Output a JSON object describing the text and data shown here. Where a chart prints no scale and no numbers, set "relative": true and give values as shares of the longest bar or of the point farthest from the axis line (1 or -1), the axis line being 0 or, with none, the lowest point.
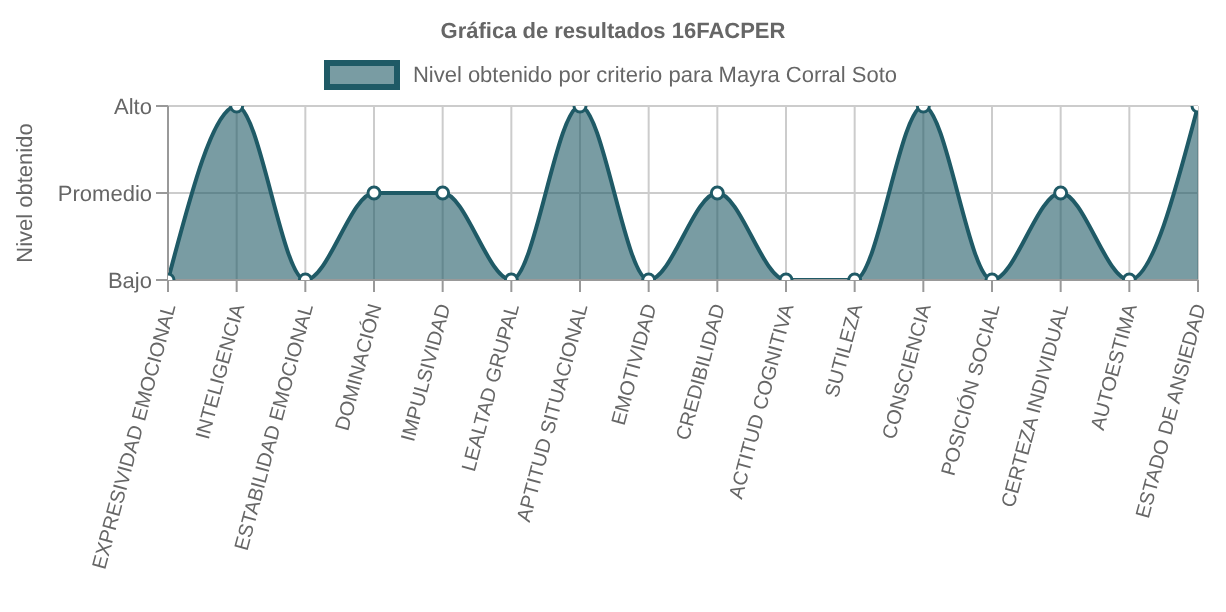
{
  "chart_data": {
    "type": "area",
    "title": "Gráfica de resultados 16FACPER",
    "ylabel": "Nivel obtenido",
    "relative": true,
    "annotations": [
      "Bajo",
      "Promedio",
      "Alto"
    ],
    "categories": [
      "EXPRESIVIDAD EMOCIONAL",
      "INTELIGENCIA",
      "ESTABILIDAD EMOCIONAL",
      "DOMINACIÓN",
      "IMPULSIVIDAD",
      "LEALTAD GRUPAL",
      "APTITUD SITUACIONAL",
      "EMOTIVIDAD",
      "CREDIBILIDAD",
      "ACTITUD COGNITIVA",
      "SUTILEZA",
      "CONSCIENCIA",
      "POSICIÓN SOCIAL",
      "CERTEZA INDIVIDUAL",
      "AUTOESTIMA",
      "ESTADO DE ANSIEDAD"
    ],
    "series": [
      {
        "name": "Nivel obtenido por criterio para Mayra Corral Soto",
        "color": "#1f5a66",
        "values": [
          0,
          1,
          0,
          0.5,
          0.5,
          0,
          1,
          0,
          0.5,
          0,
          0,
          1,
          0,
          0.5,
          0,
          1
        ]
      }
    ],
    "grid": true,
    "legend": "top",
    "marker": "circle"
  }
}
